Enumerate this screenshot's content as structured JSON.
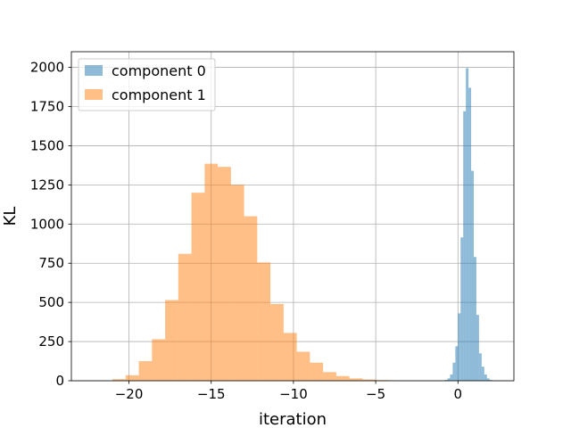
{
  "chart_data": {
    "type": "histogram",
    "title": "",
    "xlabel": "iteration",
    "ylabel": "KL",
    "xlim": [
      -23.5,
      3.4
    ],
    "ylim": [
      0,
      2100
    ],
    "xticks": [
      -20,
      -15,
      -10,
      -5,
      0
    ],
    "yticks": [
      0,
      250,
      500,
      750,
      1000,
      1250,
      1500,
      1750,
      2000
    ],
    "grid": true,
    "legend_position": "top-left",
    "series": [
      {
        "name": "component 0",
        "color": "#1f77b4",
        "opacity": 0.5,
        "bins": [
          [
            -0.8,
            -0.64,
            5
          ],
          [
            -0.64,
            -0.48,
            15
          ],
          [
            -0.48,
            -0.32,
            40
          ],
          [
            -0.32,
            -0.16,
            115
          ],
          [
            -0.16,
            0.0,
            220
          ],
          [
            0.0,
            0.16,
            430
          ],
          [
            0.16,
            0.32,
            915
          ],
          [
            0.32,
            0.48,
            1720
          ],
          [
            0.48,
            0.64,
            1995
          ],
          [
            0.64,
            0.8,
            1870
          ],
          [
            0.8,
            0.96,
            1340
          ],
          [
            0.96,
            1.12,
            790
          ],
          [
            1.12,
            1.28,
            420
          ],
          [
            1.28,
            1.44,
            175
          ],
          [
            1.44,
            1.6,
            90
          ],
          [
            1.6,
            1.76,
            40
          ],
          [
            1.76,
            1.92,
            15
          ],
          [
            1.92,
            2.08,
            5
          ]
        ]
      },
      {
        "name": "component 1",
        "color": "#ff7f0e",
        "opacity": 0.5,
        "bins": [
          [
            -21.0,
            -20.2,
            10
          ],
          [
            -20.2,
            -19.4,
            35
          ],
          [
            -19.4,
            -18.6,
            125
          ],
          [
            -18.6,
            -17.8,
            265
          ],
          [
            -17.8,
            -17.0,
            515
          ],
          [
            -17.0,
            -16.2,
            810
          ],
          [
            -16.2,
            -15.4,
            1200
          ],
          [
            -15.4,
            -14.6,
            1385
          ],
          [
            -14.6,
            -13.8,
            1365
          ],
          [
            -13.8,
            -13.0,
            1250
          ],
          [
            -13.0,
            -12.2,
            1050
          ],
          [
            -12.2,
            -11.4,
            755
          ],
          [
            -11.4,
            -10.6,
            490
          ],
          [
            -10.6,
            -9.8,
            305
          ],
          [
            -9.8,
            -9.0,
            185
          ],
          [
            -9.0,
            -8.2,
            115
          ],
          [
            -8.2,
            -7.4,
            55
          ],
          [
            -7.4,
            -6.6,
            30
          ],
          [
            -6.6,
            -5.8,
            15
          ],
          [
            -5.8,
            -5.0,
            8
          ],
          [
            -5.0,
            -4.2,
            4
          ],
          [
            -4.2,
            -3.4,
            2
          ]
        ]
      }
    ]
  }
}
